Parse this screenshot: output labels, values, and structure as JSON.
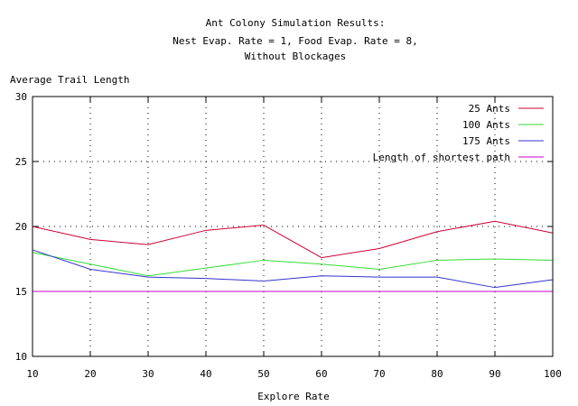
{
  "chart_data": {
    "type": "line",
    "title_lines": [
      "Ant Colony Simulation Results:",
      "Nest Evap. Rate = 1, Food Evap. Rate = 8,",
      "Without Blockages"
    ],
    "xlabel": "Explore Rate",
    "ylabel": "Average Trail Length",
    "x": [
      10,
      20,
      30,
      40,
      50,
      60,
      70,
      80,
      90,
      100
    ],
    "xlim": [
      10,
      100
    ],
    "ylim": [
      10,
      30
    ],
    "xticks": [
      "10",
      "20",
      "30",
      "40",
      "50",
      "60",
      "70",
      "80",
      "90",
      "100"
    ],
    "yticks": [
      "10",
      "15",
      "20",
      "25",
      "30"
    ],
    "grid": true,
    "legend_position": "top-right",
    "series": [
      {
        "name": "25 Ants",
        "color": "#cc0033",
        "values": [
          20.0,
          19.0,
          18.6,
          19.7,
          20.1,
          17.6,
          18.3,
          19.6,
          20.4,
          19.5
        ]
      },
      {
        "name": "100 Ants",
        "color": "#33dd33",
        "values": [
          18.0,
          17.1,
          16.2,
          16.8,
          17.4,
          17.1,
          16.7,
          17.4,
          17.5,
          17.4
        ]
      },
      {
        "name": "175 Ants",
        "color": "#3333cc",
        "values": [
          18.2,
          16.7,
          16.1,
          16.0,
          15.8,
          16.2,
          16.1,
          16.1,
          15.3,
          15.9
        ]
      },
      {
        "name": "Length of shortest path",
        "color": "#cc00cc",
        "values": [
          15.0,
          15.0,
          15.0,
          15.0,
          15.0,
          15.0,
          15.0,
          15.0,
          15.0,
          15.0
        ]
      }
    ]
  }
}
